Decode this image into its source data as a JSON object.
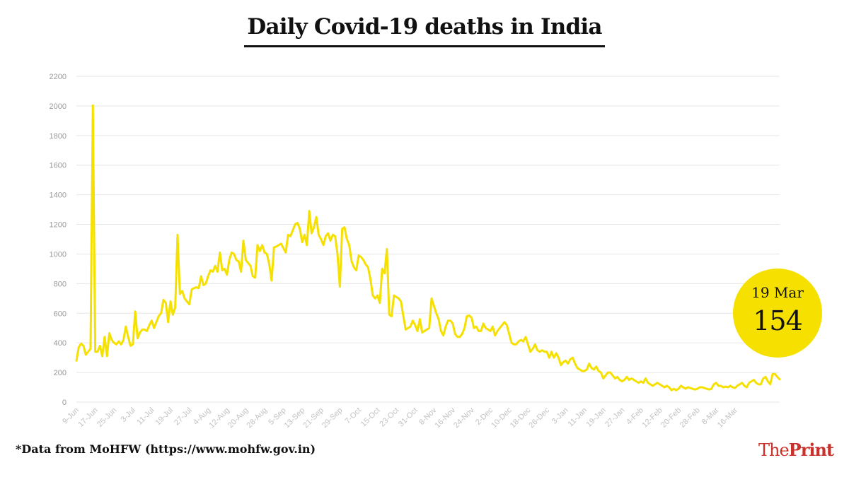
{
  "title": "Daily Covid-19 deaths in India",
  "footnote": "*Data from MoHFW (https://www.mohfw.gov.in)",
  "brand": {
    "part1": "The",
    "part2": "Print"
  },
  "callout": {
    "date": "19 Mar",
    "value": "154"
  },
  "colors": {
    "line": "#f5e000",
    "callout": "#f5e000",
    "brand": "#c8322b"
  },
  "chart_data": {
    "type": "line",
    "title": "Daily Covid-19 deaths in India",
    "xlabel": "",
    "ylabel": "",
    "ylim": [
      0,
      2200
    ],
    "yticks": [
      0,
      200,
      400,
      600,
      800,
      1000,
      1200,
      1400,
      1600,
      1800,
      2000,
      2200
    ],
    "grid": true,
    "x_start": "9-Jun",
    "x_end": "19-Mar",
    "xtick_labels": [
      "9-Jun",
      "17-Jun",
      "25-Jun",
      "3-Jul",
      "11-Jul",
      "19-Jul",
      "27-Jul",
      "4-Aug",
      "12-Aug",
      "20-Aug",
      "28-Aug",
      "5-Sep",
      "13-Sep",
      "21-Sep",
      "29-Sep",
      "7-Oct",
      "15-Oct",
      "23-Oct",
      "31-Oct",
      "8-Nov",
      "16-Nov",
      "24-Nov",
      "2-Dec",
      "10-Dec",
      "18-Dec",
      "26-Dec",
      "3-Jan",
      "11-Jan",
      "19-Jan",
      "27-Jan",
      "4-Feb",
      "12-Feb",
      "20-Feb",
      "28-Feb",
      "8-Mar",
      "16-Mar"
    ],
    "series": [
      {
        "values": [
          280,
          370,
          395,
          380,
          320,
          340,
          360,
          2003,
          340,
          340,
          380,
          310,
          440,
          310,
          465,
          420,
          400,
          390,
          410,
          390,
          420,
          510,
          440,
          380,
          390,
          612,
          430,
          470,
          490,
          490,
          480,
          520,
          550,
          500,
          540,
          580,
          600,
          690,
          670,
          540,
          680,
          590,
          640,
          1129,
          730,
          750,
          700,
          680,
          660,
          760,
          770,
          775,
          770,
          850,
          790,
          800,
          850,
          890,
          880,
          920,
          880,
          1010,
          890,
          900,
          860,
          960,
          1010,
          1000,
          960,
          950,
          880,
          1090,
          960,
          940,
          920,
          850,
          840,
          1060,
          1020,
          1060,
          1010,
          1000,
          930,
          820,
          1045,
          1050,
          1060,
          1070,
          1040,
          1010,
          1130,
          1120,
          1160,
          1200,
          1210,
          1170,
          1080,
          1130,
          1060,
          1290,
          1140,
          1180,
          1250,
          1130,
          1100,
          1060,
          1120,
          1140,
          1090,
          1130,
          1120,
          1000,
          780,
          1170,
          1180,
          1100,
          1060,
          950,
          910,
          890,
          990,
          980,
          960,
          930,
          910,
          830,
          720,
          700,
          720,
          670,
          900,
          870,
          1033,
          590,
          580,
          720,
          710,
          700,
          680,
          580,
          490,
          500,
          510,
          550,
          520,
          480,
          560,
          470,
          480,
          490,
          500,
          700,
          650,
          600,
          560,
          480,
          450,
          510,
          550,
          550,
          530,
          460,
          440,
          440,
          460,
          500,
          580,
          585,
          570,
          500,
          510,
          480,
          480,
          530,
          500,
          490,
          480,
          510,
          450,
          480,
          500,
          520,
          540,
          520,
          460,
          400,
          390,
          390,
          410,
          420,
          410,
          440,
          390,
          340,
          360,
          390,
          350,
          340,
          350,
          340,
          340,
          300,
          340,
          300,
          330,
          300,
          250,
          270,
          280,
          260,
          290,
          300,
          260,
          230,
          220,
          210,
          210,
          220,
          260,
          230,
          220,
          240,
          210,
          200,
          160,
          180,
          200,
          200,
          180,
          160,
          170,
          150,
          140,
          150,
          170,
          150,
          160,
          150,
          140,
          130,
          140,
          130,
          160,
          130,
          120,
          110,
          120,
          130,
          120,
          110,
          100,
          110,
          100,
          80,
          90,
          80,
          90,
          110,
          100,
          90,
          100,
          95,
          90,
          85,
          90,
          100,
          100,
          95,
          90,
          85,
          90,
          120,
          130,
          110,
          110,
          100,
          105,
          100,
          110,
          100,
          95,
          110,
          120,
          130,
          110,
          100,
          130,
          140,
          150,
          130,
          120,
          120,
          160,
          170,
          140,
          120,
          190,
          190,
          170,
          154
        ]
      }
    ]
  }
}
